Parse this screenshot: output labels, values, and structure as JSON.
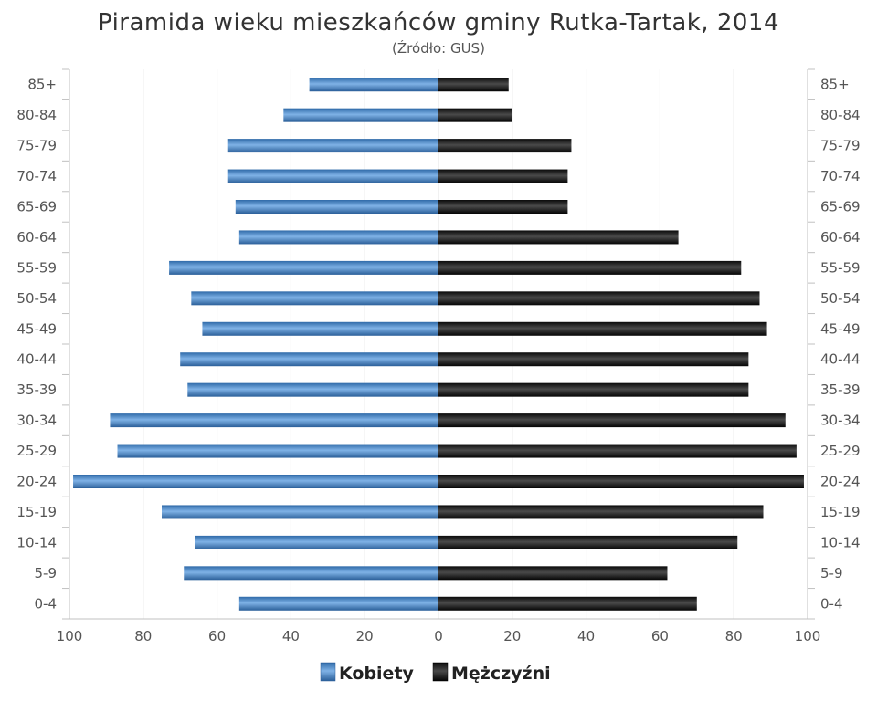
{
  "chart_data": {
    "type": "bar",
    "orientation": "horizontal",
    "subtype": "population-pyramid",
    "title": "Piramida wieku mieszkańców gminy Rutka-Tartak, 2014",
    "subtitle": "(Źródło: GUS)",
    "categories": [
      "85+",
      "80-84",
      "75-79",
      "70-74",
      "65-69",
      "60-64",
      "55-59",
      "50-54",
      "45-49",
      "40-44",
      "35-39",
      "30-34",
      "25-29",
      "20-24",
      "15-19",
      "10-14",
      "5-9",
      "0-4"
    ],
    "series": [
      {
        "name": "Kobiety",
        "color": "#4a86c5",
        "side": "left",
        "values": [
          35,
          42,
          57,
          57,
          55,
          54,
          73,
          67,
          64,
          70,
          68,
          89,
          87,
          99,
          75,
          66,
          69,
          54
        ]
      },
      {
        "name": "Mężczyźni",
        "color": "#1f1f1f",
        "side": "right",
        "values": [
          19,
          20,
          36,
          35,
          35,
          65,
          82,
          87,
          89,
          84,
          84,
          94,
          97,
          99,
          88,
          81,
          62,
          70
        ]
      }
    ],
    "xlim": [
      -100,
      100
    ],
    "x_tick_labels": [
      "100",
      "80",
      "60",
      "40",
      "20",
      "0",
      "20",
      "40",
      "60",
      "80",
      "100"
    ],
    "grid": true,
    "legend": "bottom-center"
  }
}
